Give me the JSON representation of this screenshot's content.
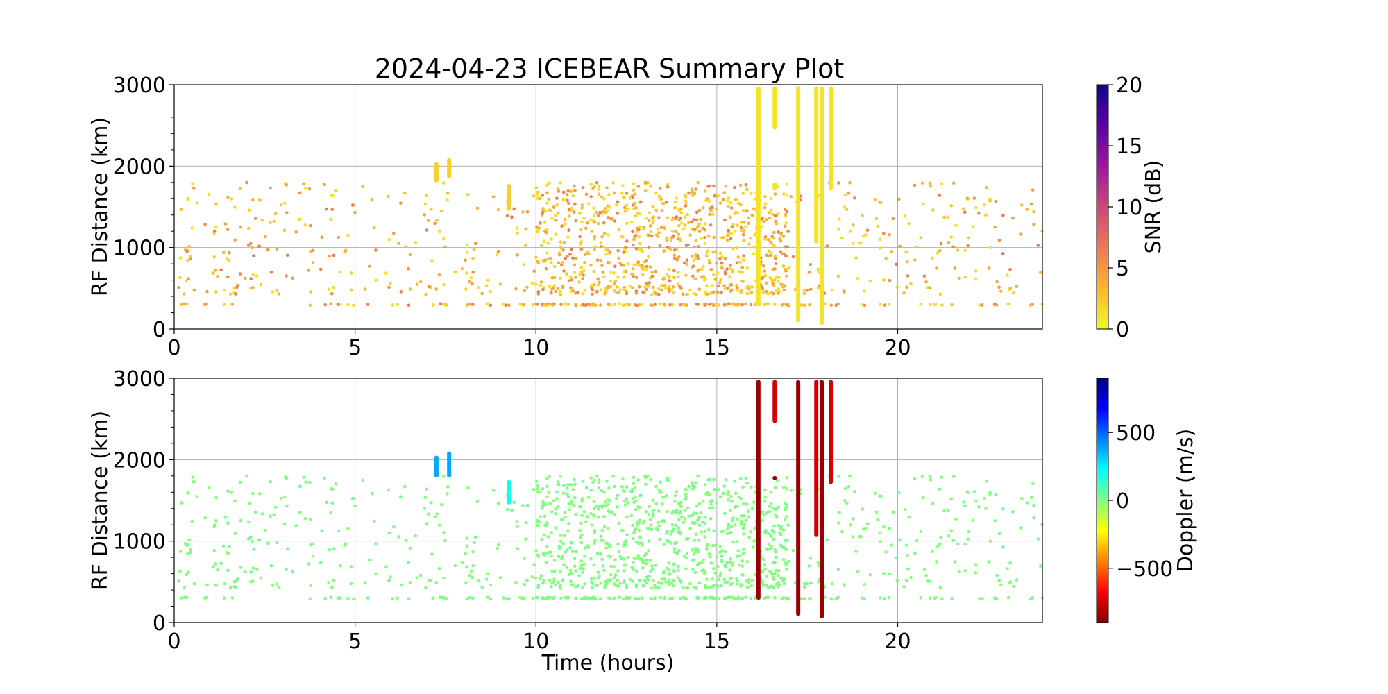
{
  "figure": {
    "title": "2024-04-23 ICEBEAR Summary Plot"
  },
  "chart_data": [
    {
      "type": "scatter",
      "panel": "top",
      "title": "2024-04-23 ICEBEAR Summary Plot",
      "xlabel": "",
      "ylabel": "RF Distance (km)",
      "xlim": [
        0,
        24
      ],
      "ylim": [
        0,
        3000
      ],
      "x_ticks": [
        "0",
        "5",
        "10",
        "15",
        "20"
      ],
      "y_ticks": [
        "0",
        "1000",
        "2000",
        "3000"
      ],
      "grid": true,
      "color_variable": "SNR (dB)",
      "colorbar": {
        "label": "SNR (dB)",
        "range": [
          0,
          20
        ],
        "ticks": [
          "0",
          "5",
          "10",
          "15",
          "20"
        ],
        "colormap": "plasma_r",
        "colors": [
          "#f0f921",
          "#fdb42f",
          "#ed7953",
          "#cc4778",
          "#9c179e",
          "#5c01a6",
          "#0d0887"
        ]
      },
      "bands": [
        {
          "x": 7.25,
          "y": [
            1800,
            2050
          ],
          "value": 2
        },
        {
          "x": 7.6,
          "y": [
            1850,
            2100
          ],
          "value": 2
        },
        {
          "x": 9.25,
          "y": [
            1450,
            1780
          ],
          "value": 2
        },
        {
          "x": 16.15,
          "y": [
            280,
            2980
          ],
          "value": 1
        },
        {
          "x": 16.6,
          "y": [
            2450,
            2980
          ],
          "value": 1
        },
        {
          "x": 16.6,
          "y": [
            1700,
            1800
          ],
          "value": 1
        },
        {
          "x": 17.25,
          "y": [
            80,
            2980
          ],
          "value": 1
        },
        {
          "x": 17.75,
          "y": [
            1050,
            2980
          ],
          "value": 1
        },
        {
          "x": 17.9,
          "y": [
            50,
            2980
          ],
          "value": 1
        },
        {
          "x": 18.15,
          "y": [
            1700,
            2980
          ],
          "value": 1
        }
      ],
      "points_summary": {
        "count": 1400,
        "x_range": [
          0,
          24
        ],
        "y_range": [
          280,
          1800
        ],
        "dense_x_range": [
          10,
          17
        ],
        "baseline_row_y": 300,
        "typical_value_range": [
          1,
          6
        ]
      }
    },
    {
      "type": "scatter",
      "panel": "bottom",
      "title": "",
      "xlabel": "Time (hours)",
      "ylabel": "RF Distance (km)",
      "xlim": [
        0,
        24
      ],
      "ylim": [
        0,
        3000
      ],
      "x_ticks": [
        "0",
        "5",
        "10",
        "15",
        "20"
      ],
      "y_ticks": [
        "0",
        "1000",
        "2000",
        "3000"
      ],
      "grid": true,
      "color_variable": "Doppler (m/s)",
      "colorbar": {
        "label": "Doppler (m/s)",
        "range": [
          -900,
          900
        ],
        "ticks": [
          "−500",
          "0",
          "500"
        ],
        "tick_values": [
          -500,
          0,
          500
        ],
        "colormap": "jet_r",
        "colors": [
          "#7f0000",
          "#ff0000",
          "#ff8000",
          "#ffff00",
          "#80ff80",
          "#00ffff",
          "#0080ff",
          "#0000ff",
          "#00007f"
        ]
      },
      "bands": [
        {
          "x": 7.25,
          "y": [
            1780,
            2050
          ],
          "value": 380
        },
        {
          "x": 7.6,
          "y": [
            1780,
            2100
          ],
          "value": 380
        },
        {
          "x": 9.25,
          "y": [
            1450,
            1750
          ],
          "value": 200
        },
        {
          "x": 16.15,
          "y": [
            280,
            2980
          ],
          "value": -850
        },
        {
          "x": 16.6,
          "y": [
            2450,
            2980
          ],
          "value": -750
        },
        {
          "x": 16.6,
          "y": [
            1750,
            1800
          ],
          "value": -850
        },
        {
          "x": 17.25,
          "y": [
            80,
            2980
          ],
          "value": -850
        },
        {
          "x": 17.75,
          "y": [
            1050,
            2980
          ],
          "value": -750
        },
        {
          "x": 17.9,
          "y": [
            50,
            2980
          ],
          "value": -850
        },
        {
          "x": 18.15,
          "y": [
            1700,
            2980
          ],
          "value": -750
        }
      ],
      "points_summary": {
        "count": 1400,
        "x_range": [
          0,
          24
        ],
        "y_range": [
          280,
          1800
        ],
        "dense_x_range": [
          10,
          17
        ],
        "baseline_row_y": 300,
        "typical_value": 0
      }
    }
  ]
}
